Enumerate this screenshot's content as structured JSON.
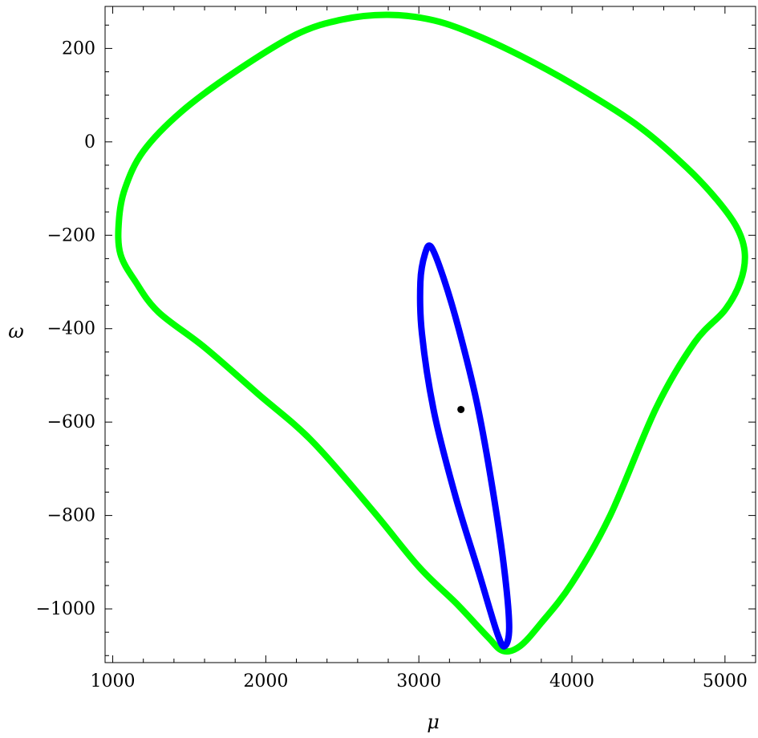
{
  "chart_data": {
    "type": "line",
    "xlabel": "μ",
    "ylabel": "ω",
    "xlim": [
      950,
      5200
    ],
    "ylim": [
      -1115,
      290
    ],
    "grid": false,
    "x_ticks": [
      {
        "value": 1000,
        "label": "1000"
      },
      {
        "value": 2000,
        "label": "2000"
      },
      {
        "value": 3000,
        "label": "3000"
      },
      {
        "value": 4000,
        "label": "4000"
      },
      {
        "value": 5000,
        "label": "5000"
      }
    ],
    "y_ticks": [
      {
        "value": 200,
        "label": "200"
      },
      {
        "value": 0,
        "label": "0"
      },
      {
        "value": -200,
        "label": "−200"
      },
      {
        "value": -400,
        "label": "−400"
      },
      {
        "value": -600,
        "label": "−600"
      },
      {
        "value": -800,
        "label": "−800"
      },
      {
        "value": -1000,
        "label": "−1000"
      }
    ],
    "series": [
      {
        "color": "#00ff00",
        "closed": true,
        "points": [
          [
            2800,
            272
          ],
          [
            3100,
            260
          ],
          [
            3400,
            225
          ],
          [
            3750,
            170
          ],
          [
            4100,
            105
          ],
          [
            4450,
            30
          ],
          [
            4750,
            -55
          ],
          [
            4950,
            -125
          ],
          [
            5080,
            -185
          ],
          [
            5130,
            -240
          ],
          [
            5100,
            -300
          ],
          [
            5000,
            -360
          ],
          [
            4800,
            -430
          ],
          [
            4550,
            -570
          ],
          [
            4250,
            -800
          ],
          [
            4000,
            -945
          ],
          [
            3800,
            -1030
          ],
          [
            3660,
            -1080
          ],
          [
            3550,
            -1090
          ],
          [
            3450,
            -1060
          ],
          [
            3250,
            -990
          ],
          [
            3000,
            -910
          ],
          [
            2700,
            -790
          ],
          [
            2300,
            -640
          ],
          [
            1950,
            -540
          ],
          [
            1600,
            -440
          ],
          [
            1300,
            -365
          ],
          [
            1150,
            -300
          ],
          [
            1050,
            -240
          ],
          [
            1040,
            -170
          ],
          [
            1080,
            -100
          ],
          [
            1200,
            -20
          ],
          [
            1450,
            65
          ],
          [
            1800,
            150
          ],
          [
            2200,
            230
          ],
          [
            2500,
            262
          ]
        ]
      },
      {
        "color": "#0000ff",
        "closed": true,
        "points": [
          [
            3080,
            -225
          ],
          [
            3160,
            -290
          ],
          [
            3260,
            -400
          ],
          [
            3380,
            -560
          ],
          [
            3480,
            -740
          ],
          [
            3560,
            -920
          ],
          [
            3590,
            -1040
          ],
          [
            3560,
            -1080
          ],
          [
            3510,
            -1050
          ],
          [
            3390,
            -920
          ],
          [
            3240,
            -760
          ],
          [
            3100,
            -580
          ],
          [
            3020,
            -410
          ],
          [
            3010,
            -300
          ],
          [
            3040,
            -240
          ]
        ]
      }
    ],
    "points": [
      {
        "x": 3275,
        "y": -573,
        "color": "#000000"
      }
    ]
  }
}
